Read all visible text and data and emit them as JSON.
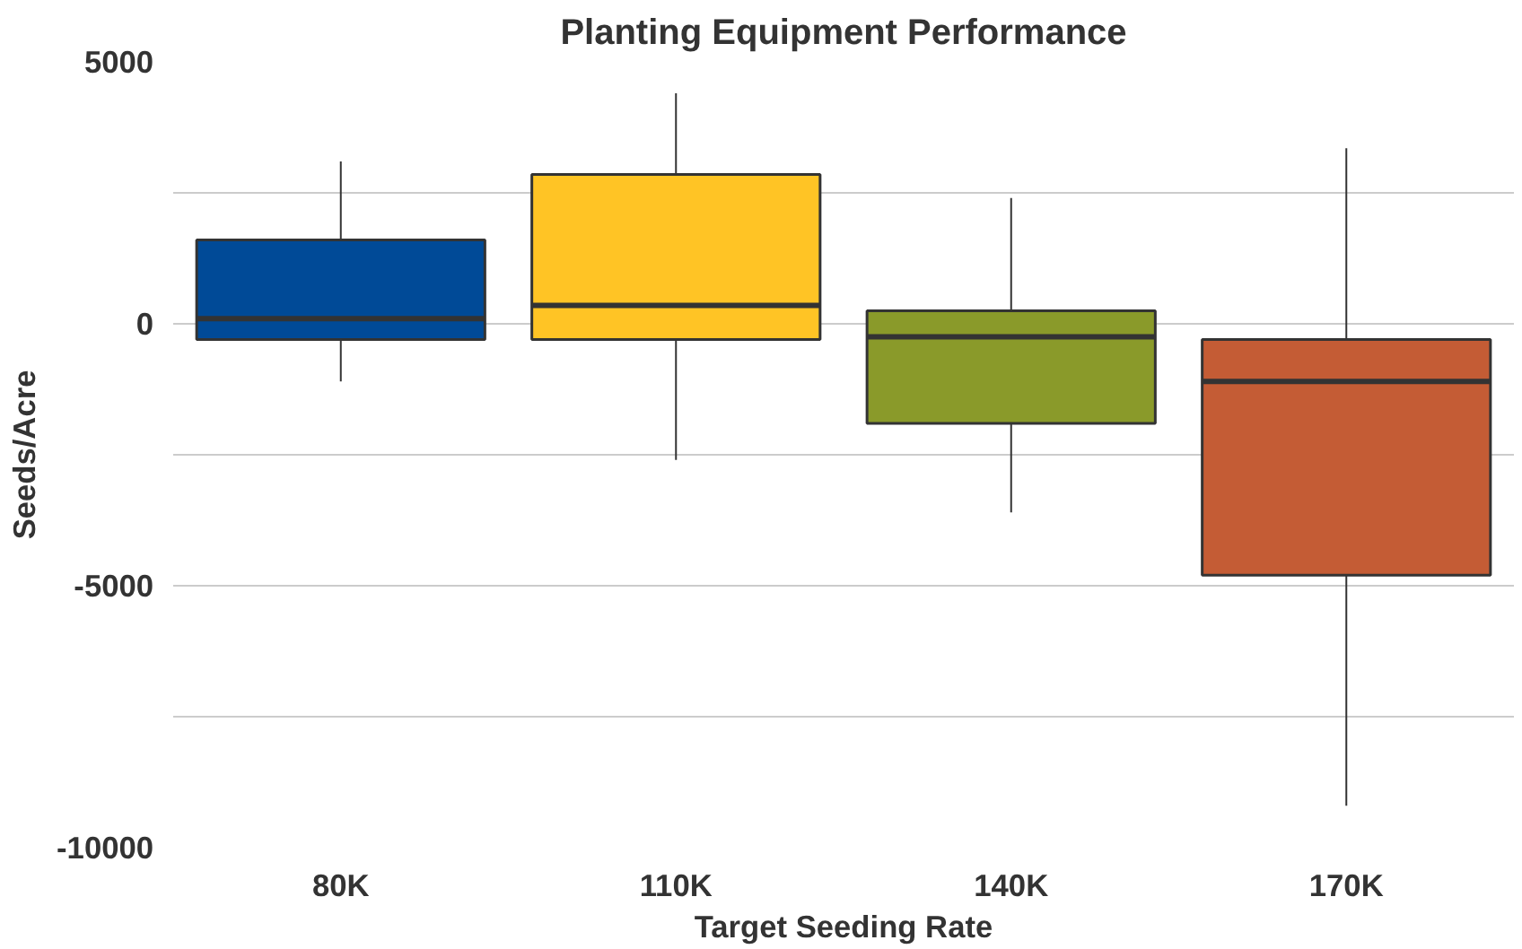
{
  "chart_data": {
    "type": "box",
    "title": "Planting Equipment Performance",
    "xlabel": "Target Seeding Rate",
    "ylabel": "Seeds/Acre",
    "categories": [
      "80K",
      "110K",
      "140K",
      "170K"
    ],
    "colors": [
      "#004a97",
      "#ffc425",
      "#8a9a2a",
      "#c45c35"
    ],
    "boxes": [
      {
        "low": -1100,
        "q1": -300,
        "median": 100,
        "q3": 1600,
        "high": 3100
      },
      {
        "low": -2600,
        "q1": -300,
        "median": 350,
        "q3": 2850,
        "high": 4400
      },
      {
        "low": -3600,
        "q1": -1900,
        "median": -250,
        "q3": 250,
        "high": 2400
      },
      {
        "low": -9200,
        "q1": -4800,
        "median": -1100,
        "q3": -300,
        "high": 3350
      }
    ],
    "ylim": [
      -10000,
      5000
    ],
    "yticks": [
      {
        "value": -10000,
        "label": "-10000"
      },
      {
        "value": -7500,
        "label": null
      },
      {
        "value": -5000,
        "label": "-5000"
      },
      {
        "value": -2500,
        "label": null
      },
      0,
      {
        "value": 2500,
        "label": null
      },
      5000
    ],
    "grid": "y"
  }
}
